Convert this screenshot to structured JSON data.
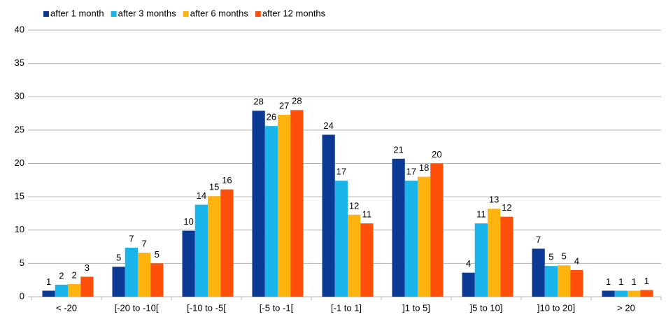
{
  "chart_data": {
    "type": "bar",
    "categories": [
      "< -20",
      "[-20 to -10[",
      "[-10 to -5[",
      "[-5 to -1[",
      "[-1 to 1]",
      "]1 to 5]",
      "]5 to 10]",
      "]10 to 20]",
      "> 20"
    ],
    "series": [
      {
        "name": "after 1 month",
        "color": "#0a3a94",
        "values": [
          0.9,
          4.5,
          9.9,
          27.9,
          24.3,
          20.7,
          3.6,
          7.2,
          0.9
        ],
        "value_labels": [
          "1",
          "5",
          "10",
          "28",
          "24",
          "21",
          "4",
          "7",
          "1"
        ]
      },
      {
        "name": "after 3 months",
        "color": "#18b4ea",
        "values": [
          1.8,
          7.35,
          13.8,
          25.6,
          17.4,
          17.4,
          11.0,
          4.6,
          0.9
        ],
        "value_labels": [
          "2",
          "7",
          "14",
          "26",
          "17",
          "17",
          "11",
          "5",
          "1"
        ]
      },
      {
        "name": "after 6 months",
        "color": "#ffb30f",
        "values": [
          1.9,
          6.6,
          15.1,
          27.3,
          12.3,
          18.0,
          13.2,
          4.7,
          0.9
        ],
        "value_labels": [
          "2",
          "7",
          "15",
          "27",
          "12",
          "18",
          "13",
          "5",
          "1"
        ]
      },
      {
        "name": "after 12 months",
        "color": "#ff4f0a",
        "values": [
          3.0,
          5.0,
          16.1,
          28.0,
          11.0,
          20.0,
          12.0,
          4.0,
          1.0
        ],
        "value_labels": [
          "3",
          "5",
          "16",
          "28",
          "11",
          "20",
          "12",
          "4",
          "1"
        ]
      }
    ],
    "ylim": [
      0,
      40
    ],
    "yticks": [
      0,
      5,
      10,
      15,
      20,
      25,
      30,
      35,
      40
    ],
    "grid": true,
    "legend": "top"
  }
}
